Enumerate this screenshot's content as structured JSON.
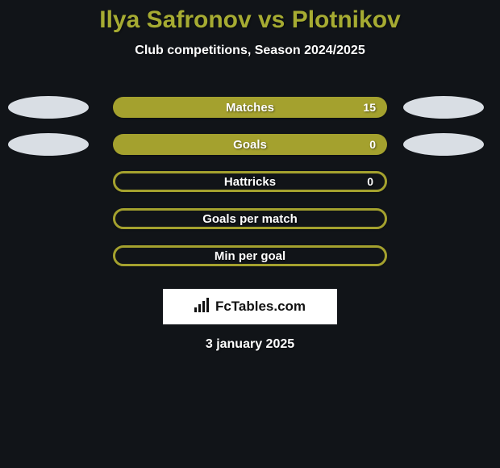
{
  "background_color": "#111418",
  "title": {
    "text": "Ilya Safronov vs Plotnikov",
    "color": "#a6ab32",
    "fontsize": 30
  },
  "subtitle": {
    "text": "Club competitions, Season 2024/2025",
    "color": "#ffffff",
    "fontsize": 16
  },
  "ellipse_color": "#d9dee4",
  "chart": {
    "bar_color": "#a4a12e",
    "hollow_bar_color": "#a4a12e",
    "label_color": "#ffffff",
    "value_color": "#ffffff",
    "rows": [
      {
        "label": "Matches",
        "value": "15",
        "fill": "solid",
        "has_ellipses": true
      },
      {
        "label": "Goals",
        "value": "0",
        "fill": "solid",
        "has_ellipses": true
      },
      {
        "label": "Hattricks",
        "value": "0",
        "fill": "hollow",
        "has_ellipses": false
      },
      {
        "label": "Goals per match",
        "value": "",
        "fill": "hollow",
        "has_ellipses": false
      },
      {
        "label": "Min per goal",
        "value": "",
        "fill": "hollow",
        "has_ellipses": false
      }
    ]
  },
  "logo": {
    "text": "FcTables.com",
    "background": "#ffffff",
    "text_color": "#111111"
  },
  "date": "3 january 2025"
}
